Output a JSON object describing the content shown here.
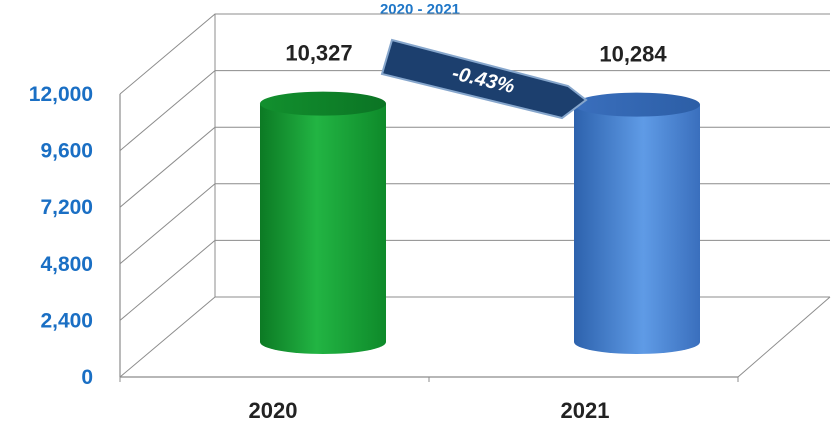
{
  "chart_data": {
    "type": "bar",
    "title": "2020 - 2021",
    "categories": [
      "2020",
      "2021"
    ],
    "values": [
      10327,
      10284
    ],
    "data_labels": [
      "10,327",
      "10,284"
    ],
    "yticks": [
      "0",
      "2,400",
      "4,800",
      "7,200",
      "9,600",
      "12,000"
    ],
    "ylim": [
      0,
      12000
    ],
    "grid": true,
    "bar_style": "3d-cylinder",
    "colors": [
      "#1aa336",
      "#4a86d4"
    ],
    "change_callout": "-0.43%",
    "callout_color": "#1c3f6e"
  }
}
